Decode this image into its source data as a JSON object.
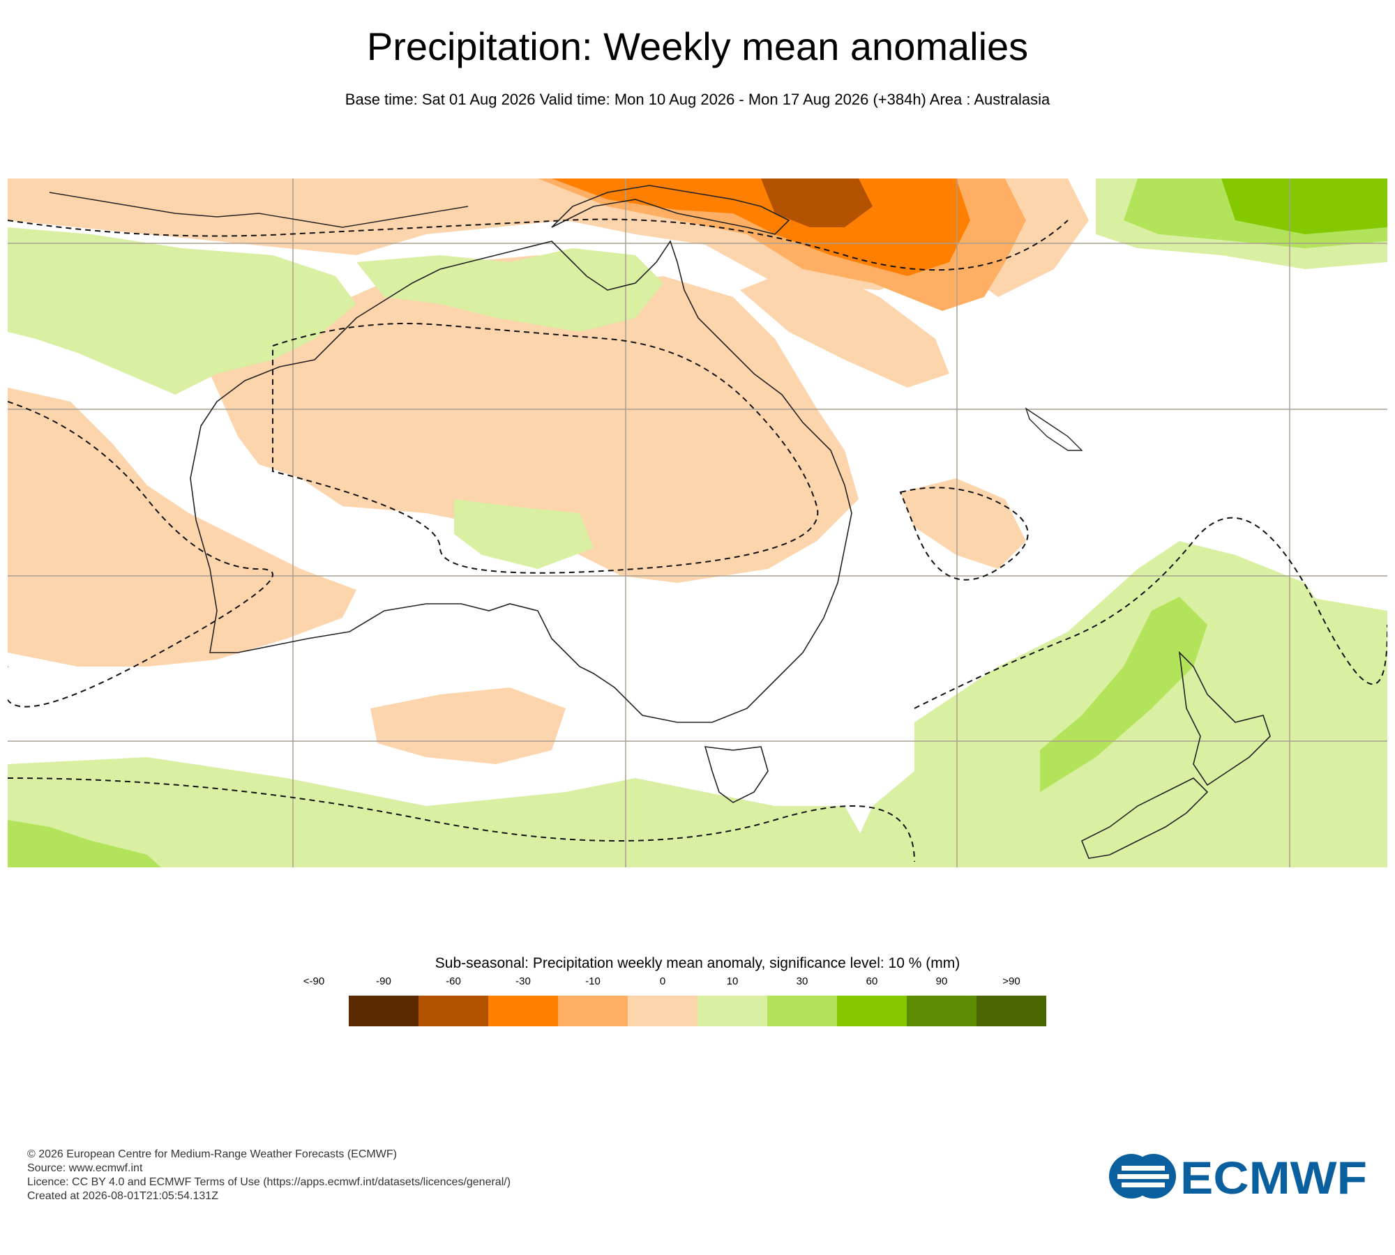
{
  "header": {
    "title": "Precipitation: Weekly mean anomalies",
    "subtitle": "Base time: Sat 01 Aug 2026 Valid time: Mon 10 Aug 2026 - Mon 17 Aug 2026 (+384h) Area : Australasia"
  },
  "map": {
    "region": "Australasia",
    "colors": {
      "ocean_neutral": "#ffffff",
      "dry_weak": "#fdd5ad",
      "dry_moderate": "#ffaf63",
      "dry_strong": "#ff7f00",
      "dry_very_strong": "#b35200",
      "wet_weak": "#d9f0a3",
      "wet_moderate": "#b2e35a",
      "wet_strong": "#84c800",
      "grid": "#a89f90",
      "coast": "#222222",
      "significance_contour": "#111111"
    }
  },
  "legend": {
    "title": "Sub-seasonal: Precipitation weekly mean anomaly, significance level: 10 % (mm)",
    "labels": [
      "<-90",
      "-90",
      "-60",
      "-30",
      "-10",
      "0",
      "10",
      "30",
      "60",
      "90",
      ">90"
    ],
    "colors": [
      "#5c2a00",
      "#b35200",
      "#ff7f00",
      "#ffaf63",
      "#fdd5ad",
      "#d9f0a3",
      "#b2e35a",
      "#84c800",
      "#5c8c00",
      "#4a6600"
    ]
  },
  "footer": {
    "copyright": "© 2026 European Centre for Medium-Range Weather Forecasts (ECMWF)",
    "source": "Source: www.ecmwf.int",
    "licence": "Licence: CC BY 4.0 and ECMWF Terms of Use (https://apps.ecmwf.int/datasets/licences/general/)",
    "created": "Created at 2026-08-01T21:05:54.131Z"
  },
  "logo": {
    "text": "ECMWF",
    "color": "#0a5f9e"
  }
}
